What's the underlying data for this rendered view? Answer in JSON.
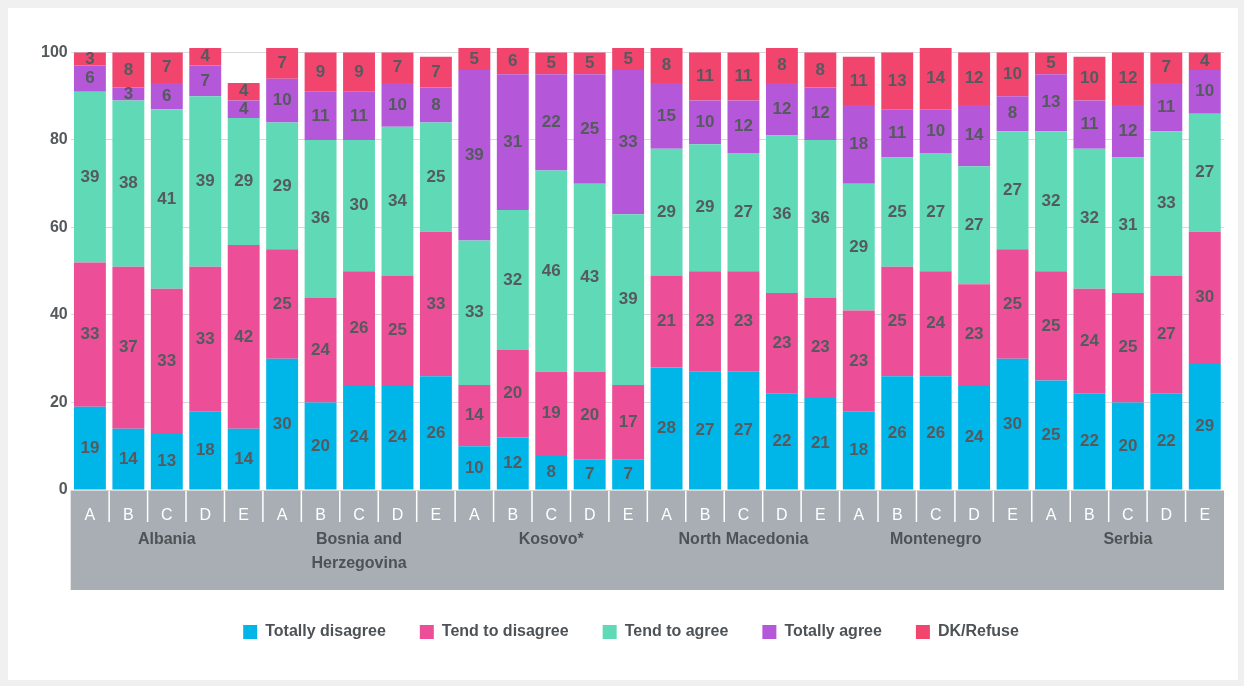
{
  "chart_data": {
    "type": "bar",
    "stacked": true,
    "data_labels": true,
    "grid": "y",
    "legend": "bottom",
    "categories": [
      "A",
      "B",
      "C",
      "D",
      "E",
      "A",
      "B",
      "C",
      "D",
      "E",
      "A",
      "B",
      "C",
      "D",
      "E",
      "A",
      "B",
      "C",
      "D",
      "E",
      "A",
      "B",
      "C",
      "D",
      "E",
      "A",
      "B",
      "C",
      "D",
      "E"
    ],
    "annotations": [
      "Albania",
      "Bosnia and Herzegovina",
      "Kosovo*",
      "North Macedonia",
      "Montenegro",
      "Serbia"
    ],
    "ylim": [
      0,
      101
    ],
    "yticks": [
      0,
      20,
      40,
      60,
      80,
      100
    ],
    "series": [
      {
        "name": "Totally disagree",
        "color": "#00b6e8",
        "values": [
          19,
          14,
          13,
          18,
          14,
          30,
          20,
          24,
          24,
          26,
          10,
          12,
          8,
          7,
          7,
          28,
          27,
          27,
          22,
          21,
          18,
          26,
          26,
          24,
          30,
          25,
          22,
          20,
          22,
          29
        ]
      },
      {
        "name": "Tend to disagree",
        "color": "#ec4f97",
        "values": [
          33,
          37,
          33,
          33,
          42,
          25,
          24,
          26,
          25,
          33,
          14,
          20,
          19,
          20,
          17,
          21,
          23,
          23,
          23,
          23,
          23,
          25,
          24,
          23,
          25,
          25,
          24,
          25,
          27,
          30
        ]
      },
      {
        "name": "Tend to agree",
        "color": "#5fd9b6",
        "values": [
          39,
          38,
          41,
          39,
          29,
          29,
          36,
          30,
          34,
          25,
          33,
          32,
          46,
          43,
          39,
          29,
          29,
          27,
          36,
          36,
          29,
          25,
          27,
          27,
          27,
          32,
          32,
          31,
          33,
          27
        ]
      },
      {
        "name": "Totally agree",
        "color": "#b457d8",
        "values": [
          6,
          3,
          6,
          7,
          4,
          10,
          11,
          11,
          10,
          8,
          39,
          31,
          22,
          25,
          33,
          15,
          10,
          12,
          12,
          12,
          18,
          11,
          10,
          14,
          8,
          13,
          11,
          12,
          11,
          10
        ]
      },
      {
        "name": "DK/Refuse",
        "color": "#f2456d",
        "values": [
          3,
          8,
          7,
          4,
          4,
          7,
          9,
          9,
          7,
          7,
          5,
          6,
          5,
          5,
          5,
          8,
          11,
          11,
          8,
          8,
          11,
          13,
          14,
          12,
          10,
          5,
          10,
          12,
          7,
          4
        ]
      }
    ]
  }
}
